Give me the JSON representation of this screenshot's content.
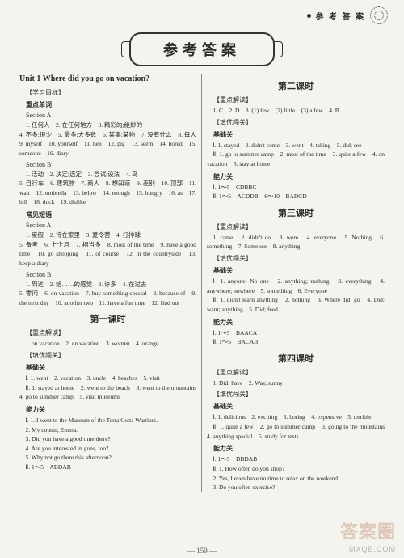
{
  "header": {
    "label": "参 考 答 案"
  },
  "banner": {
    "title": "参考答案"
  },
  "left": {
    "unit_title": "Unit 1  Where did you go on vacation?",
    "study_goal": "【学习目标】",
    "key_words": "重点单词",
    "section_a": "Section A",
    "sa_lines": [
      "1. 任何人　2. 在任何地方　3. 精彩的;绝妙的",
      "4. 不多;很少　5. 最多;大多数　6. 某事;某物　7. 没有什么　8. 每人　9. myself　10. yourself　11. hen　12. pig　13. seem　14. bored　15. someone　16. diary"
    ],
    "section_b": "Section B",
    "sb_lines": [
      "1. 活动　2. 决定;选定　3. 尝试;设法　4. 鸟",
      "5. 自行车　6. 建筑物　7. 商人　8. 想知道　9. 差别　10. 顶部　11. wait　12. umbrella　13. below　14. enough　15. hungry　16. as　17. hill　18. duck　19. dislike"
    ],
    "phrases": "常见短语",
    "pa": "Section A",
    "pa_lines": [
      "1. 度假　2. 待在家里　3. 夏令营　4. 打排球",
      "5. 备考　6. 上个月　7. 相当多　8. most of the time　9. have a good time　10. go shopping　11. of course　12. in the countryside　13. keep a diary"
    ],
    "pb": "Section B",
    "pb_lines": [
      "1. 到达　2. 给……的感觉　3. 许多　4. 在过去",
      "5. 零问　6. on vacation　7. buy something special　8. because of　9. the next day　10. another two　11. have a fun time　12. find out"
    ],
    "lesson1": "第一课时",
    "l1_key": "【重点解读】",
    "l1_key_line": "1. on vacation　2. on vacation　3. women　4. orange",
    "l1_best": "【填优闯关】",
    "l1_base": "基础关",
    "l1_base_lines": [
      "Ⅰ. 1. went　2. vacation　3. uncle　4. beaches　5. visit",
      "Ⅱ. 1. stayed at home　2. went to the beach　3. went to the mountains　4. go to summer camp　5. visit museums"
    ],
    "l1_abil": "能力关",
    "l1_abil_lines": [
      "Ⅰ. 1. I went to the Museum of the Terra Cotta Warriors.",
      "2. My cousin, Emma.",
      "3. Did you have a good time there?",
      "4. Are you interested in guns, too?",
      "5. Why not go there this afternoon?",
      "Ⅱ. 1～5　ABDAB"
    ]
  },
  "right": {
    "lesson2": "第二课时",
    "l2_key": "【重点解读】",
    "l2_key_line": "1. C　2. D　3. (1) few　(2) little　(3) a few　4. B",
    "l2_best": "【填优闯关】",
    "l2_base": "基础关",
    "l2_base_lines": [
      "Ⅰ. 1. stayed　2. didn't come　3. went　4. taking　5. did; see",
      "Ⅱ. 1. go to summer camp　2. most of the time　3. quite a few　4. on vacation　5. stay at home"
    ],
    "l2_abil": "能力关",
    "l2_abil_lines": [
      "Ⅰ. 1～5　CDBBC",
      "Ⅱ. 1～5　ACDDB　6～10　BADCD"
    ],
    "lesson3": "第三课时",
    "l3_key": "【重点解读】",
    "l3_key_line": "1. came　2. didn't do　3. were　4. everyone　5. Nothing　6. something　7. Someone　8. anything",
    "l3_best": "【填优闯关】",
    "l3_base": "基础关",
    "l3_base_lines": [
      "Ⅰ. 1. anyone; No one　2. anything; nothing　3. everything　4. anywhere; nowhere　5. something　6. Everyone",
      "Ⅱ. 1. didn't learn anything　2. nothing　3. Where did; go　4. Did; want; anything　5. Did; feed"
    ],
    "l3_abil": "能力关",
    "l3_abil_lines": [
      "Ⅰ. 1～5　BAACA",
      "Ⅱ. 1～5　BACAB"
    ],
    "lesson4": "第四课时",
    "l4_key": "【重点解读】",
    "l4_key_line": "1. Did; have　2. Was; sunny",
    "l4_best": "【填优闯关】",
    "l4_base": "基础关",
    "l4_base_lines": [
      "Ⅰ. 1. delicious　2. exciting　3. boring　4. expensive　5. terrible",
      "Ⅱ. 1. quite a few　2. go to summer camp　3. going to the mountains　4. anything special　5. study for tests"
    ],
    "l4_abil": "能力关",
    "l4_abil_lines": [
      "Ⅰ. 1～5　DBDAB",
      "Ⅱ. 1. How often do you shop?",
      "2. Yes, I even have no time to relax on the weekend.",
      "3. Do you often exercise?"
    ]
  },
  "page": "— 159 —",
  "watermark": "答案圈",
  "watermark_sub": "MXQE.COM"
}
